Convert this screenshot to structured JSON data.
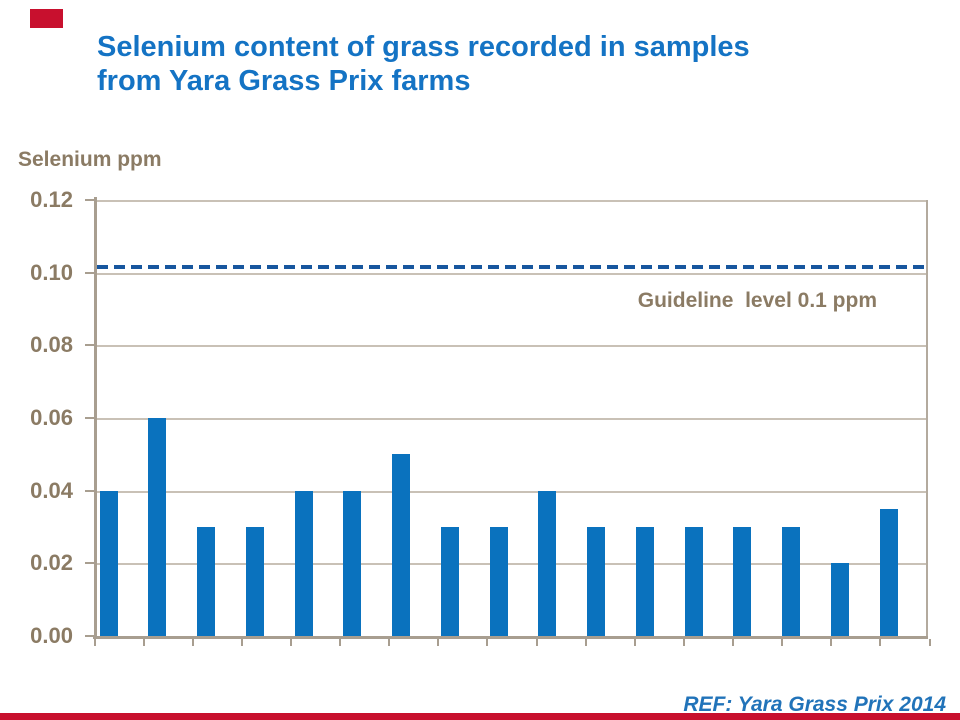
{
  "header": {
    "title_line1": "Selenium content of grass recorded in samples",
    "title_line2": "from Yara Grass Prix farms"
  },
  "footer": {
    "reference": "REF: Yara Grass Prix 2014"
  },
  "chart_data": {
    "type": "bar",
    "title": "Selenium content of grass recorded in samples from Yara Grass Prix farms",
    "ylabel": "Selenium ppm",
    "xlabel": "",
    "categories": [
      "",
      "",
      "",
      "",
      "",
      "",
      "",
      "",
      "",
      "",
      "",
      "",
      "",
      "",
      "",
      "",
      ""
    ],
    "values": [
      0.04,
      0.06,
      0.03,
      0.03,
      0.04,
      0.04,
      0.05,
      0.03,
      0.03,
      0.04,
      0.03,
      0.03,
      0.03,
      0.03,
      0.03,
      0.02,
      0.035
    ],
    "ylim": [
      0,
      0.12
    ],
    "ytick_step": 0.02,
    "ytick_labels": [
      "0.12",
      "0.10",
      "0.08",
      "0.06",
      "0.04",
      "0.02",
      "0.00"
    ],
    "grid": true,
    "legend_position": "none",
    "guideline": {
      "label": "Guideline  level 0.1 ppm",
      "value": 0.1,
      "line_y_value": 0.1016,
      "style": "dashed"
    },
    "colors": {
      "title": "#1473C4",
      "bar": "#0A72BE",
      "guideline_line": "#17569E",
      "axis_text": "#8B7B64",
      "axis_line": "#A89E90",
      "gridline": "#C9C1B6",
      "reference_text": "#2173B9",
      "accent_red": "#C8102E"
    }
  }
}
